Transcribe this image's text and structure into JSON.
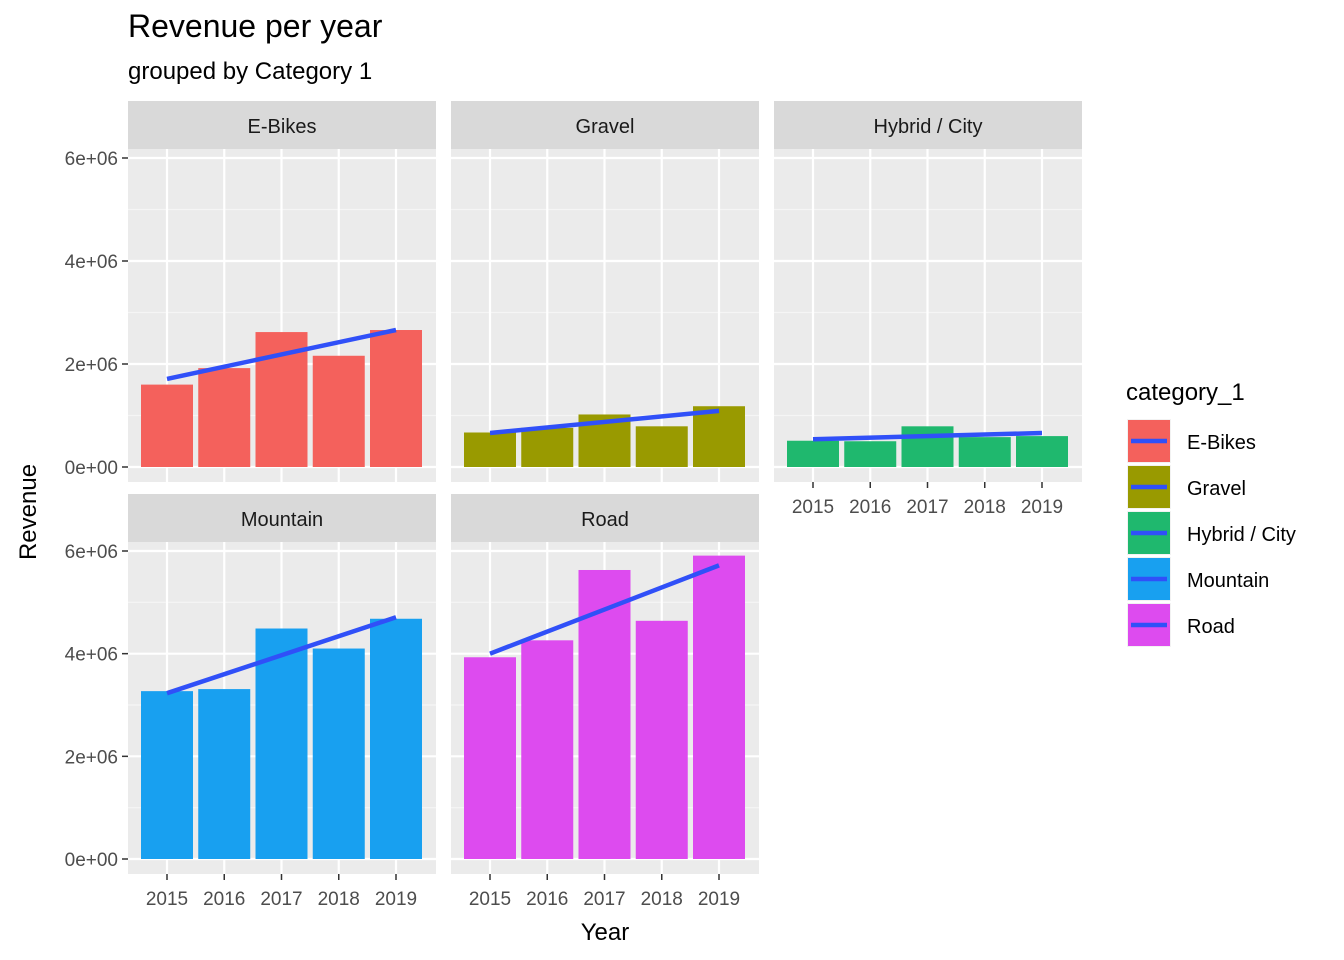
{
  "chart_data": {
    "type": "bar",
    "title": "Revenue per year",
    "subtitle": "grouped by Category 1",
    "xlabel": "Year",
    "ylabel": "Revenue",
    "x": [
      "2015",
      "2016",
      "2017",
      "2018",
      "2019"
    ],
    "ylim": [
      0,
      6000000
    ],
    "yticks": [
      0,
      2000000,
      4000000,
      6000000
    ],
    "ytick_labels": [
      "0e+00",
      "2e+06",
      "4e+06",
      "6e+06"
    ],
    "grid": true,
    "legend": {
      "title": "category_1",
      "position": "right",
      "entries": [
        "E-Bikes",
        "Gravel",
        "Hybrid / City",
        "Mountain",
        "Road"
      ]
    },
    "trend_line_color": "#3050f8",
    "panels": [
      {
        "name": "E-Bikes",
        "color": "#f4615c",
        "values": [
          1600000,
          1920000,
          2620000,
          2160000,
          2660000
        ],
        "trend": [
          1710000,
          2660000
        ]
      },
      {
        "name": "Gravel",
        "color": "#999a00",
        "values": [
          670000,
          760000,
          1020000,
          790000,
          1180000
        ],
        "trend": [
          660000,
          1090000
        ]
      },
      {
        "name": "Hybrid / City",
        "color": "#1fb86e",
        "values": [
          510000,
          500000,
          790000,
          580000,
          600000
        ],
        "trend": [
          540000,
          660000
        ]
      },
      {
        "name": "Mountain",
        "color": "#18a0f0",
        "values": [
          3270000,
          3310000,
          4490000,
          4100000,
          4680000
        ],
        "trend": [
          3230000,
          4710000
        ]
      },
      {
        "name": "Road",
        "color": "#dd4bef",
        "values": [
          3930000,
          4260000,
          5630000,
          4640000,
          5910000
        ],
        "trend": [
          4000000,
          5720000
        ]
      }
    ]
  }
}
